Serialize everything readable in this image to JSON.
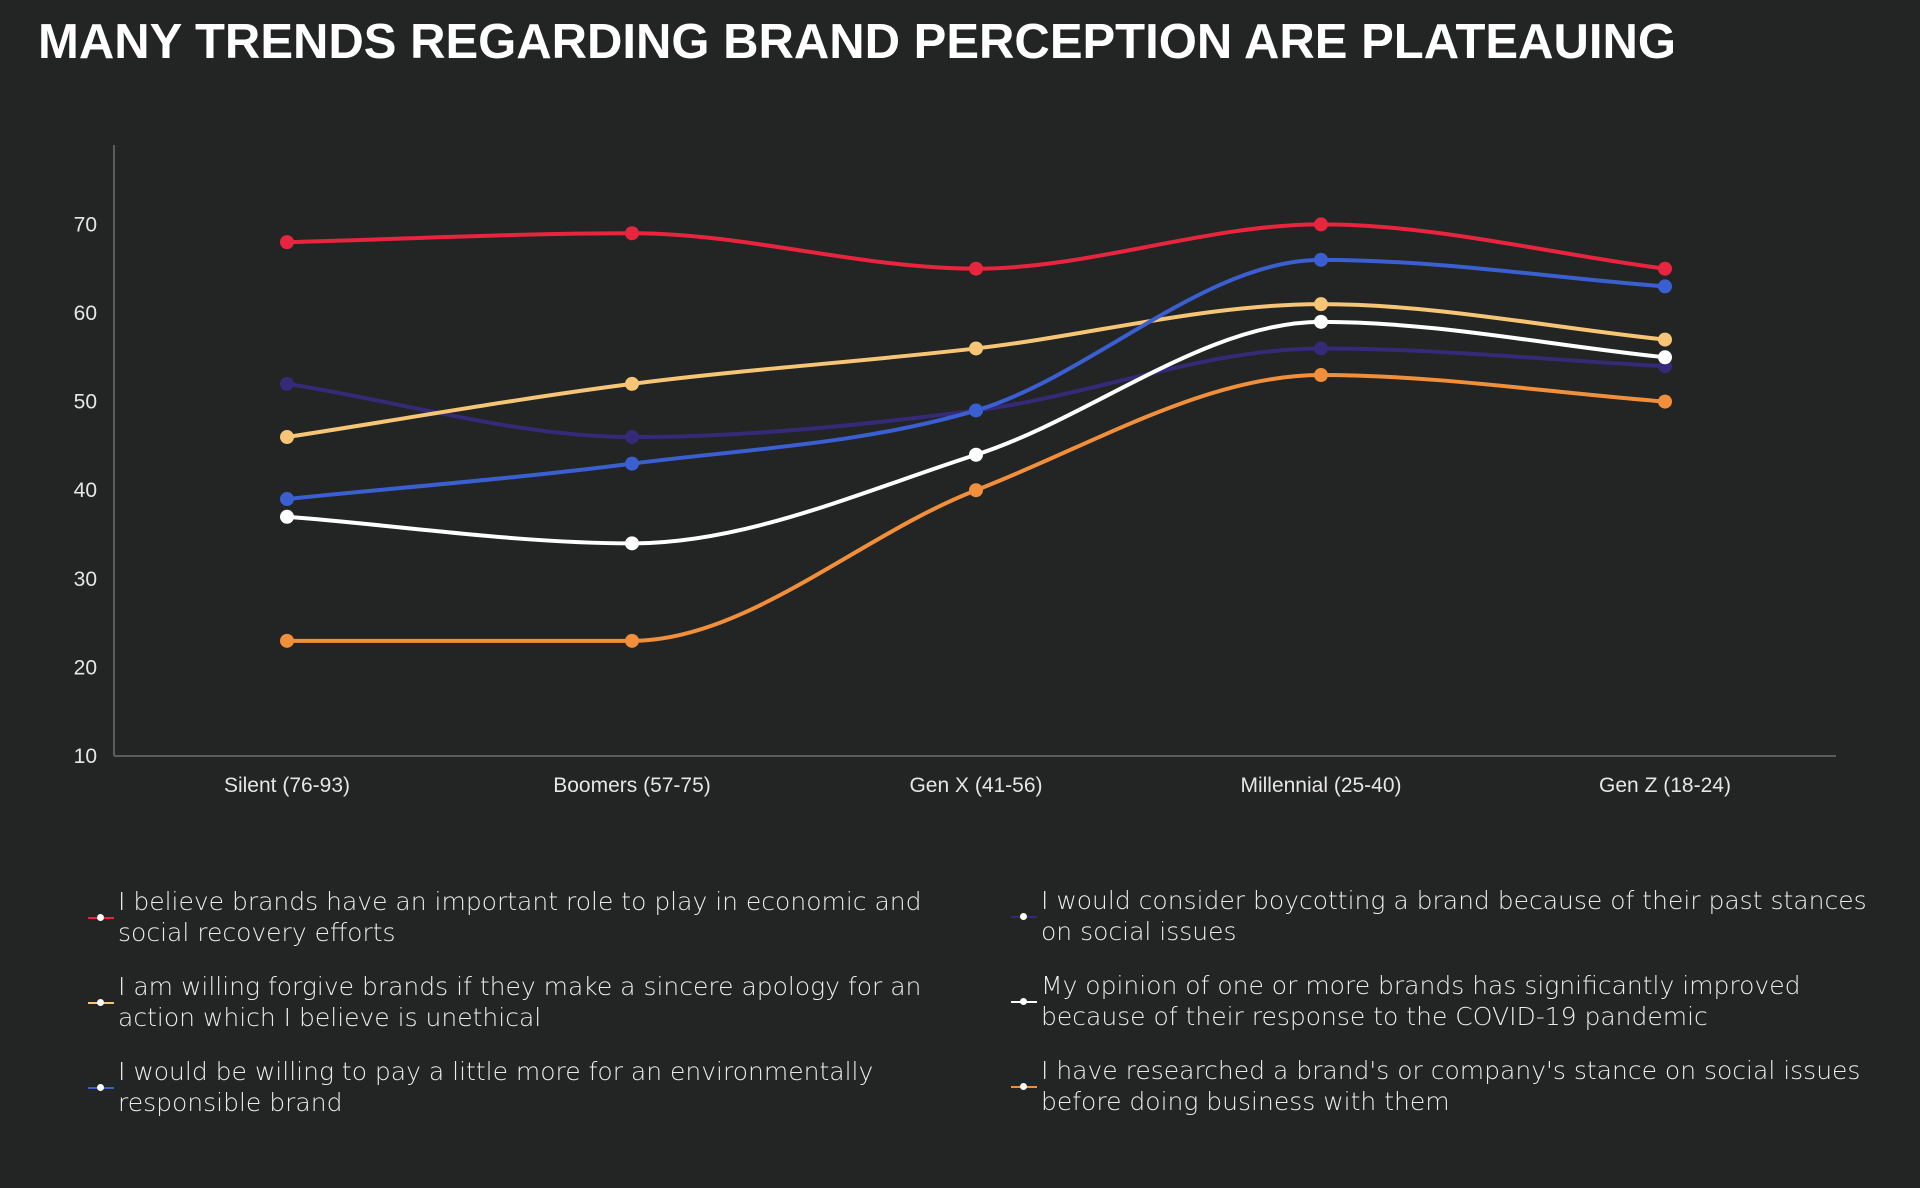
{
  "title": "MANY TRENDS REGARDING BRAND PERCEPTION ARE PLATEAUING",
  "chart_data": {
    "type": "line",
    "title": "MANY TRENDS REGARDING BRAND PERCEPTION ARE PLATEAUING",
    "xlabel": "",
    "ylabel": "",
    "categories": [
      "Silent (76-93)",
      "Boomers (57-75)",
      "Gen X (41-56)",
      "Millennial (25-40)",
      "Gen Z (18-24)"
    ],
    "ylim": [
      10,
      80
    ],
    "yticks": [
      10,
      20,
      30,
      40,
      50,
      60,
      70
    ],
    "grid": false,
    "legend_position": "bottom",
    "series": [
      {
        "name": "I believe brands have an important role to play in economic and social recovery efforts",
        "legend_lines": [
          "I believe brands have an important role to play in economic and",
          "social recovery efforts"
        ],
        "color": "#e8253f",
        "values": [
          68,
          69,
          65,
          70,
          65
        ]
      },
      {
        "name": "I am willing forgive brands if they make a sincere apology for an action which I believe is unethical",
        "legend_lines": [
          "I am willing forgive brands if they make a sincere apology for an",
          "action which I believe is unethical"
        ],
        "color": "#f6c575",
        "values": [
          46,
          52,
          56,
          61,
          57
        ]
      },
      {
        "name": "I would be willing to pay a little more for an environmentally responsible brand",
        "legend_lines": [
          "I would be willing to pay a little more for an environmentally",
          "responsible brand"
        ],
        "color": "#3a5fd0",
        "values": [
          39,
          43,
          49,
          66,
          63
        ]
      },
      {
        "name": "I would consider boycotting a brand because of their past stances on social issues",
        "legend_lines": [
          "I would consider boycotting a brand because of their past stances",
          "on social issues"
        ],
        "color": "#342a78",
        "values": [
          52,
          46,
          49,
          56,
          54
        ]
      },
      {
        "name": "My opinion of one or more brands has significantly improved because of their response to the COVID-19 pandemic",
        "legend_lines": [
          "My opinion of one or more brands has significantly improved",
          "because of their response to the COVID-19 pandemic"
        ],
        "color": "#ffffff",
        "values": [
          37,
          34,
          44,
          59,
          55
        ]
      },
      {
        "name": "I have researched a brand's or company's stance on social issues before doing business with them",
        "legend_lines": [
          "I have researched a brand's or company's stance on social issues",
          "before doing business with them"
        ],
        "color": "#f28f3b",
        "values": [
          23,
          23,
          40,
          53,
          50
        ]
      }
    ]
  }
}
